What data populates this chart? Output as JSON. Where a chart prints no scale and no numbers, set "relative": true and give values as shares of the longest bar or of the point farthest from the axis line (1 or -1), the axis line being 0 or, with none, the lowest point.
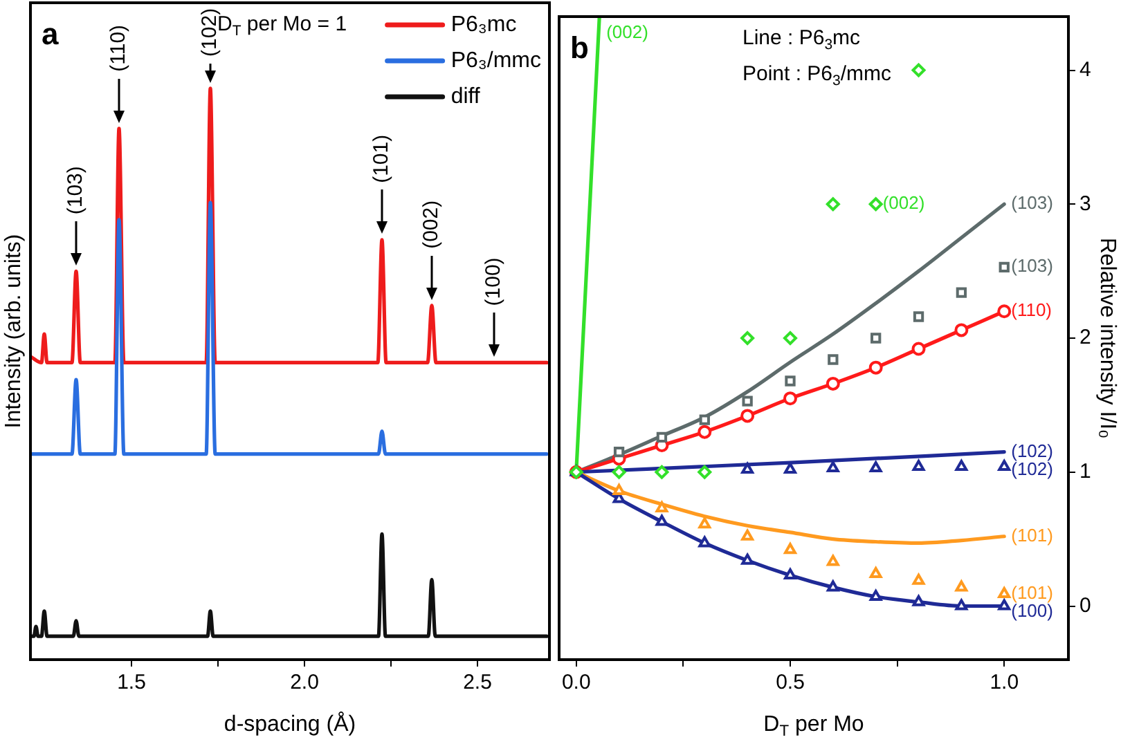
{
  "chart_data": [
    {
      "type": "line",
      "relative": true,
      "xlabel": "d-spacing (Å)",
      "ylabel": "Intensity (arb. units)",
      "xlim": [
        1.208,
        2.708
      ],
      "xticks": [
        1.5,
        {
          "value": 1.75,
          "label": null
        },
        {
          "value": 2,
          "label": "2.0"
        },
        {
          "value": 2.25,
          "label": null
        },
        2.5
      ],
      "tick_labels": "x",
      "legend": "top right",
      "annotations": [
        "a",
        "D$_{T}$ per Mo = 1",
        {
          "text": "(103)",
          "x": 1.34,
          "y": 0.68
        },
        {
          "text": "(110)",
          "x": 1.464,
          "y": 0.93
        },
        {
          "text": "(102)",
          "x": 1.728,
          "y": 1.0
        },
        {
          "text": "(101)",
          "x": 2.224,
          "y": 0.735
        },
        {
          "text": "(002)",
          "x": 2.368,
          "y": 0.62
        },
        {
          "text": "(100)",
          "x": 2.548,
          "y": 0.52
        }
      ],
      "series": [
        {
          "name": "P6₃mc",
          "color": "#ee1c1c",
          "x": [
            1.21,
            1.24,
            1.248,
            1.256,
            1.328,
            1.34,
            1.352,
            1.452,
            1.464,
            1.478,
            1.716,
            1.728,
            1.742,
            2.212,
            2.224,
            2.236,
            2.356,
            2.368,
            2.38,
            2.7
          ],
          "values": [
            0.53,
            0.52,
            0.57,
            0.52,
            0.52,
            0.68,
            0.52,
            0.52,
            0.93,
            0.52,
            0.52,
            1.0,
            0.52,
            0.52,
            0.735,
            0.52,
            0.52,
            0.62,
            0.52,
            0.52
          ]
        },
        {
          "name": "P6₃/mmc",
          "color": "#2a6ee0",
          "x": [
            1.21,
            1.328,
            1.34,
            1.352,
            1.452,
            1.464,
            1.478,
            1.716,
            1.728,
            1.742,
            2.214,
            2.224,
            2.234,
            2.7
          ],
          "values": [
            0.36,
            0.36,
            0.49,
            0.36,
            0.36,
            0.77,
            0.36,
            0.36,
            0.8,
            0.36,
            0.36,
            0.4,
            0.36,
            0.36
          ]
        },
        {
          "name": "diff",
          "color": "#111111",
          "x": [
            1.21,
            1.218,
            1.224,
            1.23,
            1.24,
            1.248,
            1.256,
            1.332,
            1.34,
            1.348,
            1.72,
            1.728,
            1.736,
            2.214,
            2.224,
            2.234,
            2.358,
            2.368,
            2.378,
            2.7
          ],
          "values": [
            0.041,
            0.041,
            0.058,
            0.041,
            0.041,
            0.085,
            0.041,
            0.041,
            0.068,
            0.041,
            0.041,
            0.085,
            0.041,
            0.041,
            0.22,
            0.041,
            0.041,
            0.14,
            0.041,
            0.041
          ]
        }
      ]
    },
    {
      "type": "line",
      "xlabel": "D$_{T}$ per Mo",
      "y2label": "Relative intensity I/I₀",
      "xlim": [
        -0.04,
        1.15
      ],
      "xticks": [
        {
          "value": 0,
          "label": "0.0"
        },
        {
          "value": 0.25,
          "label": null
        },
        0.5,
        {
          "value": 0.75,
          "label": null
        },
        {
          "value": 1,
          "label": "1.0"
        }
      ],
      "y2lim": [
        -0.4,
        4.4
      ],
      "y2ticks": [
        0,
        1,
        2,
        3,
        4
      ],
      "annotations": [
        "b",
        "Line : P6$_{3}$mc",
        "Point : P6$_{3}$/mmc"
      ],
      "series": [
        {
          "name": "(002)",
          "axis": "y2",
          "color": "#33e02a",
          "x": [
            0,
            0.054
          ],
          "values": [
            1,
            4.39
          ]
        },
        {
          "name": "(103)",
          "axis": "y2",
          "color": "#5d6b6b",
          "x": [
            0,
            0.1,
            0.2,
            0.3,
            0.4,
            0.5,
            0.6,
            0.7,
            0.8,
            0.9,
            1.0
          ],
          "values": [
            1,
            1.13,
            1.27,
            1.41,
            1.6,
            1.82,
            2.03,
            2.26,
            2.5,
            2.75,
            3.0
          ]
        },
        {
          "name": "(110)",
          "axis": "y2",
          "color": "#ff1a1a",
          "marker": "circle",
          "x": [
            0,
            0.1,
            0.2,
            0.3,
            0.4,
            0.5,
            0.6,
            0.7,
            0.8,
            0.9,
            1.0
          ],
          "values": [
            1,
            1.1,
            1.2,
            1.3,
            1.42,
            1.55,
            1.66,
            1.78,
            1.92,
            2.06,
            2.2
          ]
        },
        {
          "name": "(102)",
          "axis": "y2",
          "color": "#1f2a96",
          "x": [
            0,
            0.5,
            1.0
          ],
          "values": [
            1,
            1.07,
            1.15
          ]
        },
        {
          "name": "(101)",
          "axis": "y2",
          "color": "#ff9a1f",
          "x": [
            0,
            0.1,
            0.2,
            0.3,
            0.4,
            0.5,
            0.6,
            0.7,
            0.8,
            0.9,
            1.0
          ],
          "values": [
            1,
            0.86,
            0.76,
            0.67,
            0.6,
            0.55,
            0.5,
            0.48,
            0.47,
            0.49,
            0.52
          ]
        },
        {
          "name": "(100)",
          "axis": "y2",
          "color": "#1f2a96",
          "marker": "triangle",
          "x": [
            0,
            0.1,
            0.2,
            0.3,
            0.4,
            0.5,
            0.6,
            0.7,
            0.8,
            0.9,
            1.0
          ],
          "values": [
            1,
            0.8,
            0.63,
            0.47,
            0.34,
            0.23,
            0.14,
            0.07,
            0.03,
            0,
            0
          ]
        },
        {
          "name": "(002)",
          "axis": "y2",
          "type": "scatter",
          "marker": "diamond",
          "color": "#33e02a",
          "x": [
            0,
            0.1,
            0.2,
            0.3,
            0.4,
            0.5,
            0.6,
            0.8,
            0.7
          ],
          "values": [
            1,
            1,
            1,
            1,
            2,
            2,
            3,
            4,
            3
          ]
        },
        {
          "name": "(103)",
          "axis": "y2",
          "type": "scatter",
          "marker": "square",
          "color": "#5d6b6b",
          "x": [
            0.1,
            0.2,
            0.3,
            0.4,
            0.5,
            0.6,
            0.7,
            0.8,
            0.9,
            1.0
          ],
          "values": [
            1.15,
            1.26,
            1.39,
            1.53,
            1.68,
            1.84,
            2.0,
            2.16,
            2.34,
            2.53
          ]
        },
        {
          "name": "(102)",
          "axis": "y2",
          "type": "scatter",
          "marker": "triangle",
          "color": "#1f2a96",
          "x": [
            0.4,
            0.5,
            0.6,
            0.7,
            0.8,
            0.9,
            1.0
          ],
          "values": [
            1.02,
            1.02,
            1.03,
            1.03,
            1.04,
            1.04,
            1.04
          ]
        },
        {
          "name": "(101)",
          "axis": "y2",
          "type": "scatter",
          "marker": "triangle",
          "color": "#ff9a1f",
          "x": [
            0.1,
            0.2,
            0.3,
            0.4,
            0.5,
            0.6,
            0.7,
            0.8,
            0.9,
            1.0
          ],
          "values": [
            0.86,
            0.73,
            0.61,
            0.52,
            0.42,
            0.33,
            0.24,
            0.19,
            0.14,
            0.09
          ]
        }
      ]
    }
  ]
}
